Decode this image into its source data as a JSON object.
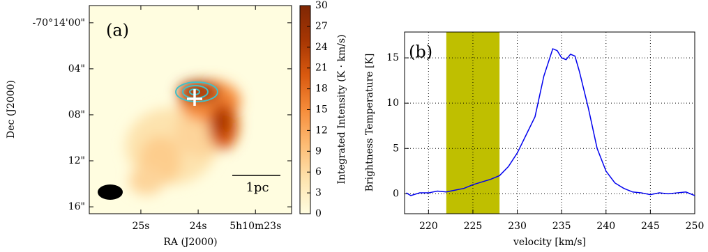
{
  "chart_data": [
    {
      "type": "image",
      "annotation": "(a)",
      "scalebar_label": "1pc",
      "xlabel": "RA (J2000)",
      "ylabel": "Dec (J2000)",
      "xlim": [
        25.9,
        22.37
      ],
      "ylim": [
        -1.5,
        16.6
      ],
      "y_inverted": true,
      "xticks": [
        {
          "value": 25,
          "label": "25s"
        },
        {
          "value": 24,
          "label": "24s"
        },
        {
          "value": 23,
          "label": "5h10m23s"
        }
      ],
      "yticks": [
        {
          "value": 0,
          "label": "-70°14'00\""
        },
        {
          "value": 4,
          "label": "04\""
        },
        {
          "value": 8,
          "label": "08\""
        },
        {
          "value": 12,
          "label": "12\""
        },
        {
          "value": 16,
          "label": "16\""
        }
      ],
      "colorbar": {
        "label": "Integrated Intensity (K · km/s)",
        "lim": [
          0,
          30
        ],
        "ticks": [
          0,
          3,
          6,
          9,
          12,
          15,
          18,
          21,
          24,
          27,
          30
        ],
        "colors": [
          "#fffde0",
          "#fde3ae",
          "#fdbb73",
          "#f68c3a",
          "#d9590f",
          "#a63603",
          "#7f2704"
        ]
      }
    },
    {
      "type": "line",
      "annotation": "(b)",
      "xlabel": "velocity [km/s]",
      "ylabel": "Brightness Temperature [K]",
      "xlim": [
        217.3,
        250
      ],
      "ylim": [
        -2.2,
        17.85
      ],
      "xticks": [
        220,
        225,
        230,
        235,
        240,
        245,
        250
      ],
      "yticks": [
        0,
        5,
        10,
        15
      ],
      "grid": true,
      "span": {
        "range": [
          222,
          228
        ],
        "color": "#bfbf00"
      },
      "series": [
        {
          "color": "#0000ee",
          "x": [
            217.5,
            218,
            219,
            220,
            221,
            222,
            223,
            224,
            225,
            226,
            227,
            228,
            229,
            230,
            231,
            232,
            233,
            234,
            234.5,
            235,
            235.5,
            236,
            236.5,
            237,
            238,
            239,
            240,
            241,
            242,
            243,
            244,
            245,
            246,
            247,
            248,
            249,
            250
          ],
          "values": [
            0.1,
            -0.2,
            0.1,
            0.1,
            0.3,
            0.2,
            0.4,
            0.6,
            1.0,
            1.3,
            1.6,
            2.0,
            3.0,
            4.5,
            6.5,
            8.5,
            13.0,
            16.0,
            15.8,
            15.0,
            14.8,
            15.4,
            15.2,
            13.5,
            9.5,
            5.0,
            2.5,
            1.2,
            0.6,
            0.2,
            0.1,
            -0.1,
            0.1,
            0.0,
            0.1,
            0.2,
            -0.2
          ]
        }
      ]
    }
  ]
}
